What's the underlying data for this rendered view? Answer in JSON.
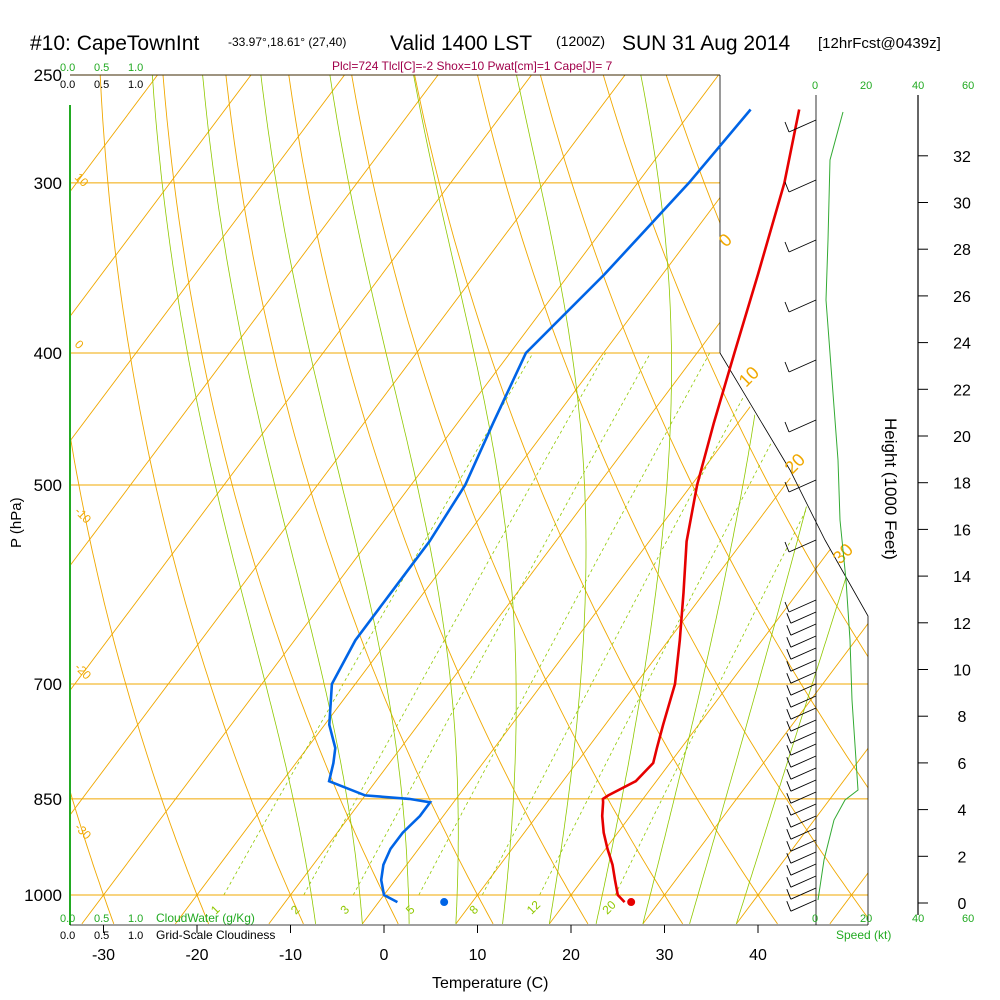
{
  "header": {
    "station": "#10: CapeTownInt",
    "coords": "-33.97°,18.61° (27,40)",
    "valid": "Valid 1400 LST",
    "utc": "(1200Z)",
    "date": "SUN 31 Aug 2014",
    "forecast": "[12hrFcst@0439z]",
    "indices": "Plcl=724 Tlcl[C]=-2 Shox=10 Pwat[cm]=1 Cape[J]= 7"
  },
  "cloud_scale": {
    "green_labels": [
      "0.0",
      "0.5",
      "1.0"
    ],
    "black_labels": [
      "0.0",
      "0.5",
      "1.0"
    ],
    "cloudwater_title": "CloudWater (g/Kg)",
    "cloudiness_title": "Grid-Scale Cloudiness"
  },
  "speed_scale": {
    "labels": [
      "0",
      "20",
      "40",
      "60"
    ],
    "title": "Speed (kt)"
  },
  "colors": {
    "isotherm": "#f0a800",
    "dry_adiabat": "#f0a800",
    "moist_adiabat": "#90c800",
    "mixing_ratio": "#90c800",
    "temperature": "#e60000",
    "dewpoint": "#0064e6",
    "speed": "#33aa33",
    "title_text": "#000000",
    "index_text": "#a0004a",
    "scale_green": "#22aa22"
  },
  "adiabat_labels": {
    "dry_left": [
      "10",
      "0",
      "-10",
      "-20",
      "-30"
    ],
    "dry_right": [
      "0",
      "10",
      "20",
      "30"
    ],
    "mixing_ratio": [
      "1",
      "2",
      "3",
      "5",
      "8",
      "12",
      "20"
    ]
  },
  "chart_data": {
    "type": "line",
    "title": "#10: CapeTownInt  Valid 1400 LST (1200Z) SUN 31 Aug 2014",
    "xlabel": "Temperature (C)",
    "ylabel": "P (hPa)",
    "y2label": "Height (1000 Feet)",
    "xlim": [
      -34,
      36
    ],
    "ylim_hpa": [
      1000,
      250
    ],
    "y_scale": "log",
    "x_ticks": [
      -30,
      -20,
      -10,
      0,
      10,
      20,
      30,
      40
    ],
    "p_ticks": [
      250,
      300,
      400,
      500,
      700,
      850,
      1000
    ],
    "height_ticks": [
      0,
      2,
      4,
      6,
      8,
      10,
      12,
      14,
      16,
      18,
      20,
      22,
      24,
      26,
      28,
      30,
      32
    ],
    "grid": true,
    "series": [
      {
        "p": [
          1012,
          1000,
          975,
          950,
          925,
          900,
          875,
          855,
          850,
          845,
          825,
          800,
          780,
          750,
          700,
          650,
          600,
          550,
          500,
          450,
          400,
          350,
          300,
          265
        ],
        "t": [
          26.3,
          25.0,
          23.5,
          22.0,
          20.2,
          18.5,
          17.0,
          16.0,
          15.7,
          16.0,
          17.8,
          18.2,
          17.4,
          16.2,
          14.2,
          11.2,
          7.8,
          4.0,
          0.6,
          -2.6,
          -6.0,
          -9.8,
          -14.3,
          -18.6
        ],
        "td": [
          2.0,
          0.0,
          -1.5,
          -2.5,
          -3.0,
          -3.0,
          -2.5,
          -2.5,
          -5.0,
          -10.0,
          -15.0,
          -16.0,
          -17.0,
          -19.5,
          -22.5,
          -23.5,
          -23.5,
          -23.5,
          -24.2,
          -26.2,
          -28.3,
          -26.2,
          -24.5,
          -23.8
        ]
      }
    ],
    "surface_points": {
      "t": 27,
      "td": 7
    }
  }
}
